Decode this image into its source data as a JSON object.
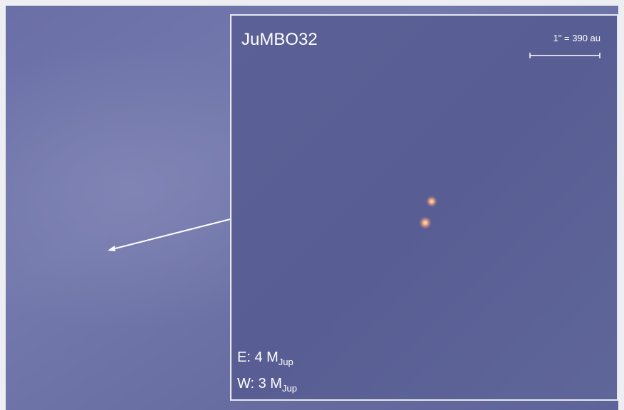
{
  "inset": {
    "title": "JuMBO32",
    "scale_label": "1\" = 390 au"
  },
  "mass_labels": [
    {
      "text": "E: 4 M",
      "sub": "Jup"
    },
    {
      "text": "W: 3 M",
      "sub": "Jup"
    }
  ]
}
